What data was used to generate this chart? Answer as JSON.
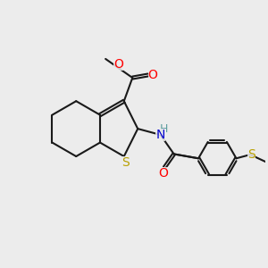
{
  "bg_color": "#ececec",
  "line_color": "#1a1a1a",
  "S_color": "#b8a000",
  "O_color": "#ff0000",
  "N_color": "#0000cd",
  "H_color": "#5f9ea0",
  "bond_lw": 1.5,
  "font_size": 9,
  "xlim": [
    0,
    10
  ],
  "ylim": [
    0,
    10
  ]
}
